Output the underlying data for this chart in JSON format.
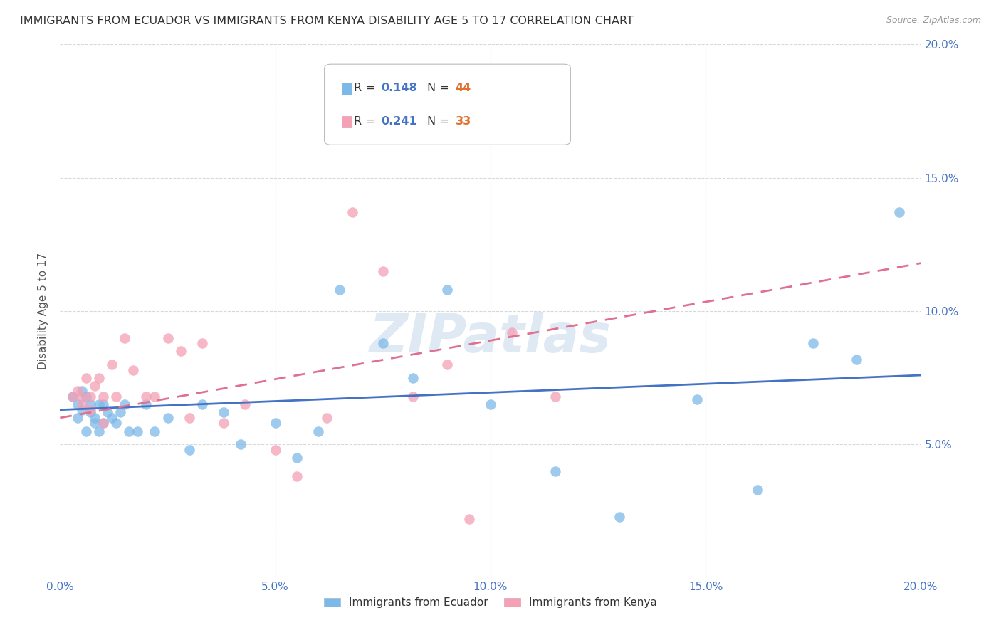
{
  "title": "IMMIGRANTS FROM ECUADOR VS IMMIGRANTS FROM KENYA DISABILITY AGE 5 TO 17 CORRELATION CHART",
  "source": "Source: ZipAtlas.com",
  "ylabel": "Disability Age 5 to 17",
  "legend_label1": "Immigrants from Ecuador",
  "legend_label2": "Immigrants from Kenya",
  "xlim": [
    0,
    0.2
  ],
  "ylim": [
    0,
    0.2
  ],
  "xticks": [
    0.0,
    0.05,
    0.1,
    0.15,
    0.2
  ],
  "yticks": [
    0.05,
    0.1,
    0.15,
    0.2
  ],
  "xtick_labels": [
    "0.0%",
    "5.0%",
    "10.0%",
    "15.0%",
    "20.0%"
  ],
  "ytick_labels": [
    "5.0%",
    "10.0%",
    "15.0%",
    "20.0%"
  ],
  "watermark": "ZIPatlas",
  "ecuador_color": "#7cb9e8",
  "kenya_color": "#f4a0b5",
  "ecuador_x": [
    0.003,
    0.004,
    0.004,
    0.005,
    0.005,
    0.006,
    0.006,
    0.007,
    0.007,
    0.008,
    0.008,
    0.009,
    0.009,
    0.01,
    0.01,
    0.011,
    0.012,
    0.013,
    0.014,
    0.015,
    0.016,
    0.018,
    0.02,
    0.022,
    0.025,
    0.03,
    0.033,
    0.038,
    0.042,
    0.05,
    0.055,
    0.06,
    0.065,
    0.075,
    0.082,
    0.09,
    0.1,
    0.115,
    0.13,
    0.148,
    0.162,
    0.175,
    0.185,
    0.195
  ],
  "ecuador_y": [
    0.068,
    0.065,
    0.06,
    0.07,
    0.063,
    0.068,
    0.055,
    0.065,
    0.062,
    0.058,
    0.06,
    0.065,
    0.055,
    0.065,
    0.058,
    0.062,
    0.06,
    0.058,
    0.062,
    0.065,
    0.055,
    0.055,
    0.065,
    0.055,
    0.06,
    0.048,
    0.065,
    0.062,
    0.05,
    0.058,
    0.045,
    0.055,
    0.108,
    0.088,
    0.075,
    0.108,
    0.065,
    0.04,
    0.023,
    0.067,
    0.033,
    0.088,
    0.082,
    0.137
  ],
  "kenya_x": [
    0.003,
    0.004,
    0.005,
    0.005,
    0.006,
    0.007,
    0.007,
    0.008,
    0.009,
    0.01,
    0.01,
    0.012,
    0.013,
    0.015,
    0.017,
    0.02,
    0.022,
    0.025,
    0.028,
    0.03,
    0.033,
    0.038,
    0.043,
    0.05,
    0.055,
    0.062,
    0.068,
    0.075,
    0.082,
    0.09,
    0.095,
    0.105,
    0.115
  ],
  "kenya_y": [
    0.068,
    0.07,
    0.068,
    0.065,
    0.075,
    0.068,
    0.063,
    0.072,
    0.075,
    0.068,
    0.058,
    0.08,
    0.068,
    0.09,
    0.078,
    0.068,
    0.068,
    0.09,
    0.085,
    0.06,
    0.088,
    0.058,
    0.065,
    0.048,
    0.038,
    0.06,
    0.137,
    0.115,
    0.068,
    0.08,
    0.022,
    0.092,
    0.068
  ],
  "ecuador_trend_x": [
    0.0,
    0.2
  ],
  "ecuador_trend_y": [
    0.063,
    0.076
  ],
  "kenya_trend_x": [
    0.0,
    0.2
  ],
  "kenya_trend_y": [
    0.06,
    0.118
  ],
  "grid_color": "#d8d8d8",
  "trend_ecuador_color": "#4472c4",
  "trend_kenya_color": "#e07090",
  "background_color": "#ffffff",
  "tick_color": "#4472c4",
  "title_color": "#333333",
  "ylabel_color": "#555555",
  "legend_r1": "0.148",
  "legend_n1": "44",
  "legend_r2": "0.241",
  "legend_n2": "33",
  "legend_color_r": "#4472c4",
  "legend_color_n": "#e07030"
}
